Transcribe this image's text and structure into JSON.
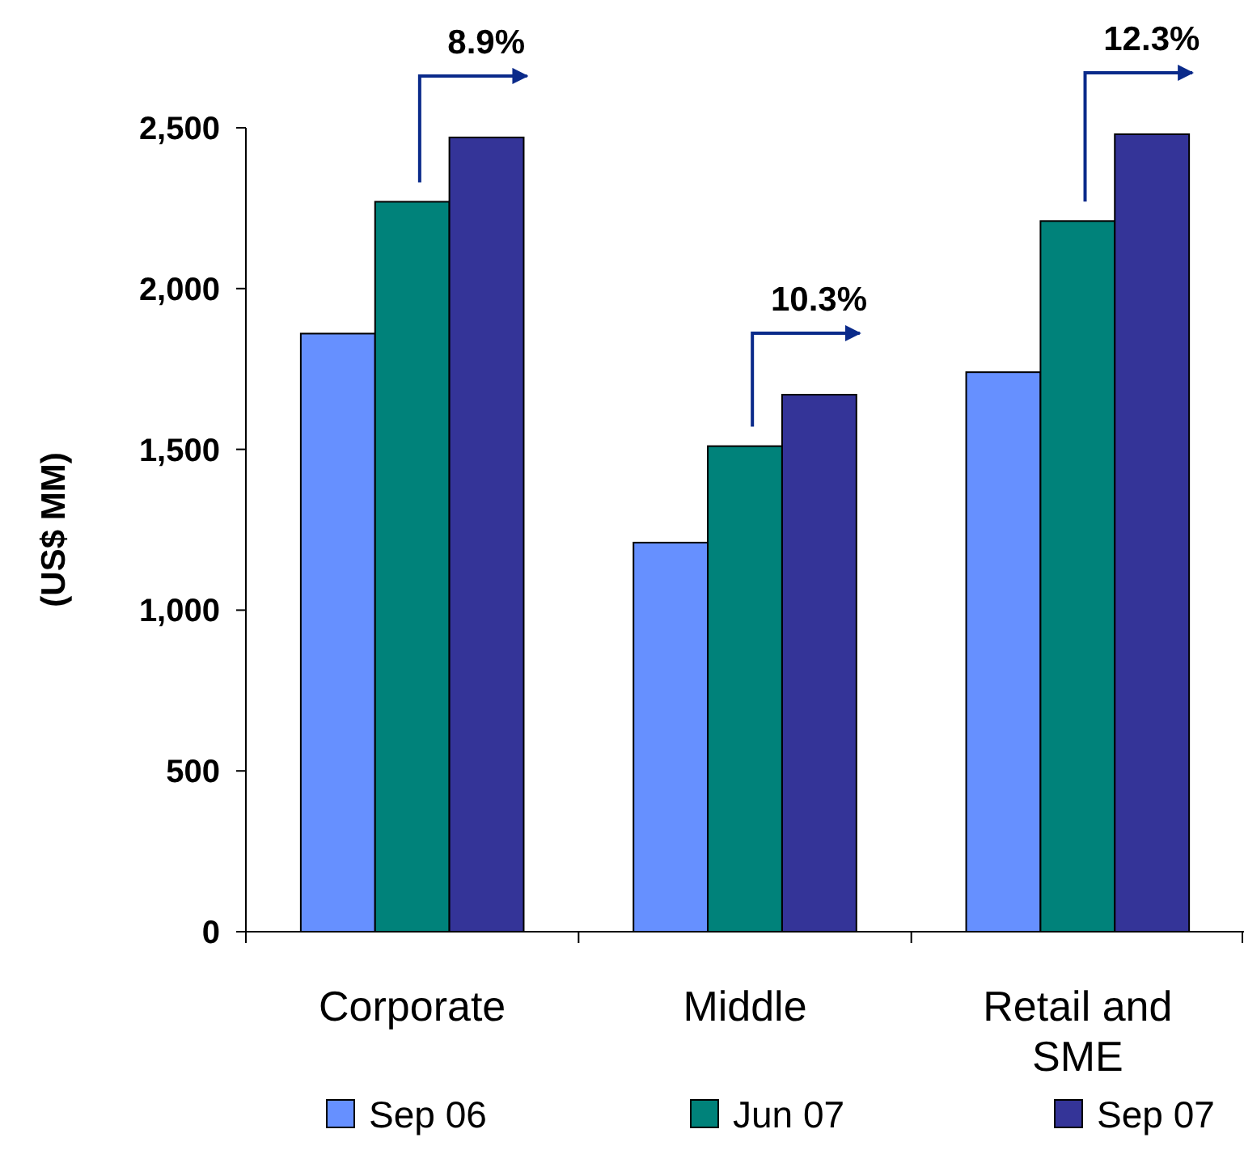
{
  "chart_data": {
    "type": "bar",
    "ylabel": "(US$ MM)",
    "categories": [
      "Corporate",
      "Middle",
      "Retail and SME"
    ],
    "series": [
      {
        "name": "Sep 06",
        "color": "#6690ff",
        "values": [
          1860,
          1210,
          1740
        ]
      },
      {
        "name": "Jun 07",
        "color": "#00827a",
        "values": [
          2270,
          1510,
          2210
        ]
      },
      {
        "name": "Sep 07",
        "color": "#343498",
        "values": [
          2470,
          1670,
          2480
        ]
      }
    ],
    "ylim": [
      0,
      2500
    ],
    "yticks": [
      0,
      {
        "value": 500,
        "label": "500"
      },
      {
        "value": 1000,
        "label": "1,000"
      },
      {
        "value": 1500,
        "label": "1,500"
      },
      {
        "value": 2000,
        "label": "2,000"
      },
      {
        "value": 2500,
        "label": "2,500"
      }
    ],
    "annotations": [
      "8.9%",
      "10.3%",
      "12.3%"
    ],
    "grid": false,
    "legend": "bottom"
  }
}
